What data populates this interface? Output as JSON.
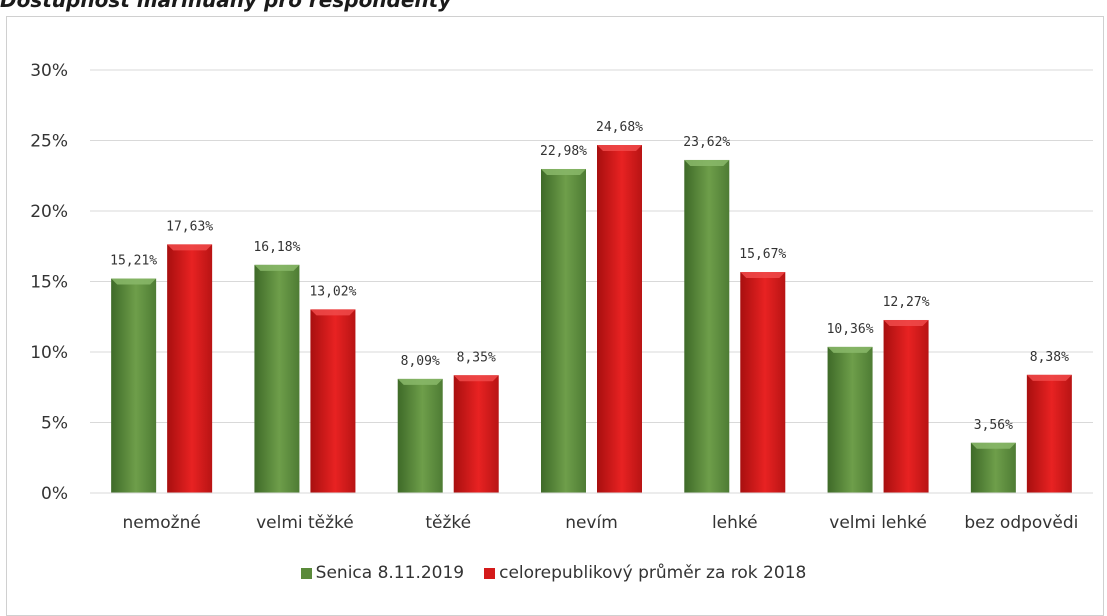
{
  "chart_data": {
    "type": "bar",
    "title": "Dostupnost marihuany pro respondenty",
    "categories": [
      "nemožné",
      "velmi těžké",
      "těžké",
      "nevím",
      "lehké",
      "velmi lehké",
      "bez odpovědi"
    ],
    "series": [
      {
        "name": "Senica 8.11.2019",
        "color": "#5a8a3a",
        "values": [
          15.21,
          16.18,
          8.09,
          22.98,
          23.62,
          10.36,
          3.56
        ],
        "labels": [
          "15,21%",
          "16,18%",
          "8,09%",
          "22,98%",
          "23,62%",
          "10,36%",
          "3,56%"
        ]
      },
      {
        "name": "celorepublikový průměr za rok 2018",
        "color": "#d41a1a",
        "values": [
          17.63,
          13.02,
          8.35,
          24.68,
          15.67,
          12.27,
          8.38
        ],
        "labels": [
          "17,63%",
          "13,02%",
          "8,35%",
          "24,68%",
          "15,67%",
          "12,27%",
          "8,38%"
        ]
      }
    ],
    "ylim": [
      0,
      30
    ],
    "yticks": [
      "0%",
      "5%",
      "10%",
      "15%",
      "20%",
      "25%",
      "30%"
    ],
    "grid": true,
    "legend": "bottom-center"
  }
}
